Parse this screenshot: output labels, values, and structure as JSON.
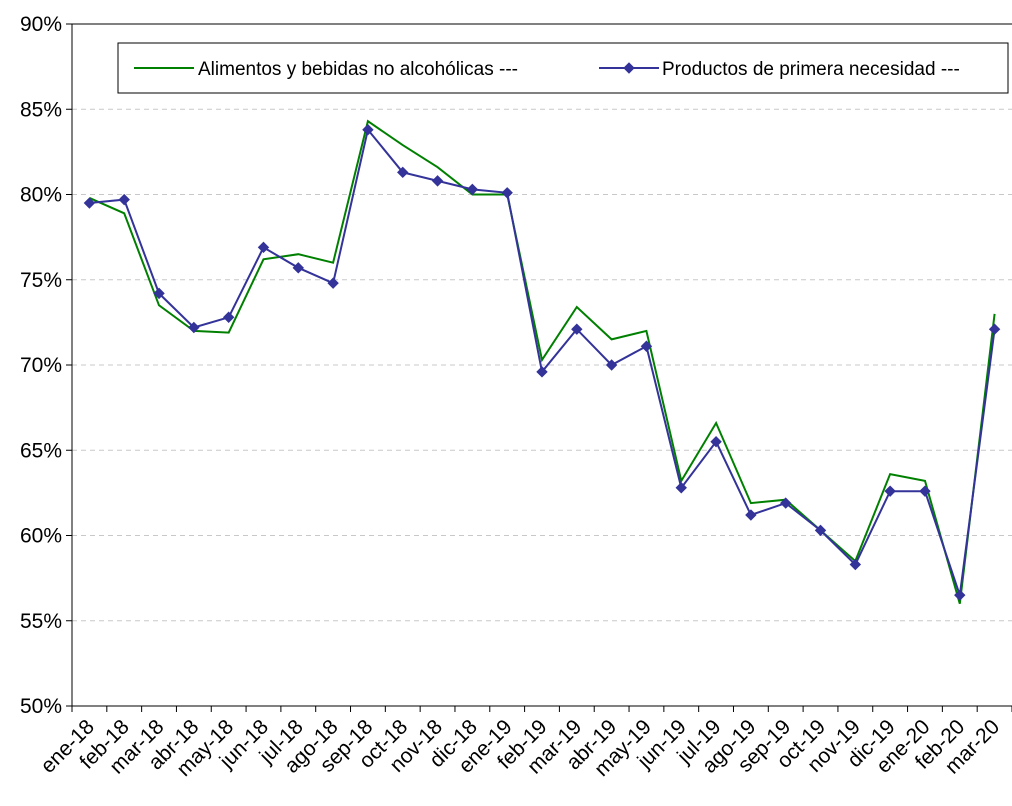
{
  "chart_data": {
    "type": "line",
    "title": "",
    "xlabel": "",
    "ylabel": "",
    "ylim": [
      0.5,
      0.9
    ],
    "y_ticks": [
      "50%",
      "55%",
      "60%",
      "65%",
      "70%",
      "75%",
      "80%",
      "85%",
      "90%"
    ],
    "grid": "horizontal dashed",
    "legend_position": "top",
    "categories": [
      "ene-18",
      "feb-18",
      "mar-18",
      "abr-18",
      "may-18",
      "jun-18",
      "jul-18",
      "ago-18",
      "sep-18",
      "oct-18",
      "nov-18",
      "dic-18",
      "ene-19",
      "feb-19",
      "mar-19",
      "abr-19",
      "may-19",
      "jun-19",
      "jul-19",
      "ago-19",
      "sep-19",
      "oct-19",
      "nov-19",
      "dic-19",
      "ene-20",
      "feb-20",
      "mar-20"
    ],
    "series": [
      {
        "name": "Alimentos y bebidas no alcohólicas ---",
        "color": "#008000",
        "marker": "none",
        "values": [
          0.798,
          0.789,
          0.735,
          0.72,
          0.719,
          0.762,
          0.765,
          0.76,
          0.843,
          0.829,
          0.816,
          0.8,
          0.8,
          0.703,
          0.734,
          0.715,
          0.72,
          0.632,
          0.666,
          0.619,
          0.621,
          0.603,
          0.585,
          0.636,
          0.632,
          0.56,
          0.73
        ]
      },
      {
        "name": "Productos de primera necesidad ---",
        "color": "#333399",
        "marker": "diamond",
        "values": [
          0.795,
          0.797,
          0.742,
          0.722,
          0.728,
          0.769,
          0.757,
          0.748,
          0.838,
          0.813,
          0.808,
          0.803,
          0.801,
          0.696,
          0.721,
          0.7,
          0.711,
          0.628,
          0.655,
          0.612,
          0.619,
          0.603,
          0.583,
          0.626,
          0.626,
          0.565,
          0.721
        ]
      }
    ]
  }
}
